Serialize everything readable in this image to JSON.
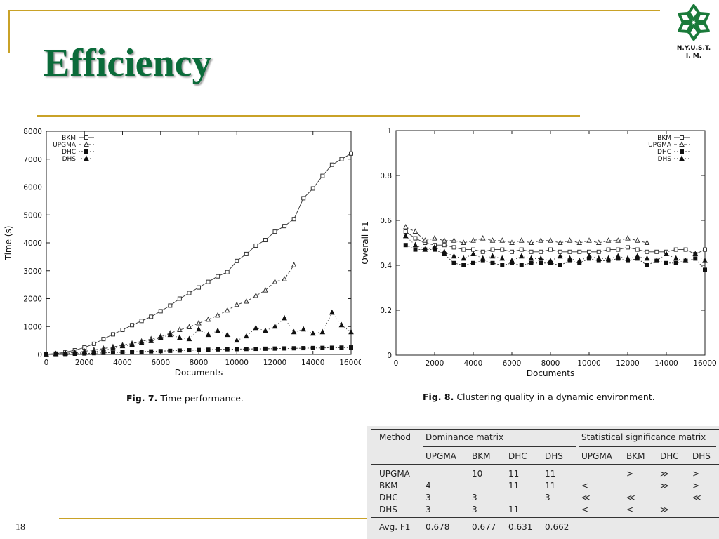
{
  "slide": {
    "title": "Efficiency",
    "page_number": "18"
  },
  "logo": {
    "icon": "snowflake-icon",
    "line1": "N.Y.U.S.T.",
    "line2": "I. M."
  },
  "colors": {
    "accent_gold": "#c9a227",
    "title_green": "#0b6b3a",
    "table_bg": "#e9e9e9"
  },
  "figures": {
    "fig7": {
      "label": "Fig. 7.",
      "caption": "Time performance."
    },
    "fig8": {
      "label": "Fig. 8.",
      "caption": "Clustering quality in a dynamic environment."
    }
  },
  "chart_data": [
    {
      "type": "line",
      "xlabel": "Documents",
      "ylabel": "Time (s)",
      "xlim": [
        0,
        16000
      ],
      "ylim": [
        0,
        8000
      ],
      "xticks": [
        "0",
        "2000",
        "4000",
        "6000",
        "8000",
        "10000",
        "12000",
        "14000",
        "16000"
      ],
      "yticks": [
        "0",
        "1000",
        "2000",
        "3000",
        "4000",
        "5000",
        "6000",
        "7000",
        "8000"
      ],
      "grid": false,
      "legend_position": "top-left",
      "series": [
        {
          "name": "BKM",
          "marker": "square",
          "x": [
            0,
            500,
            1000,
            1500,
            2000,
            2500,
            3000,
            3500,
            4000,
            4500,
            5000,
            5500,
            6000,
            6500,
            7000,
            7500,
            8000,
            8500,
            9000,
            9500,
            10000,
            10500,
            11000,
            11500,
            12000,
            12500,
            13000,
            13500,
            14000,
            14500,
            15000,
            15500,
            16000
          ],
          "y": [
            10,
            30,
            80,
            150,
            250,
            380,
            550,
            720,
            880,
            1050,
            1200,
            1350,
            1550,
            1750,
            2000,
            2200,
            2400,
            2600,
            2800,
            2950,
            3350,
            3600,
            3900,
            4100,
            4400,
            4600,
            4850,
            5600,
            5950,
            6400,
            6800,
            7000,
            7200
          ]
        },
        {
          "name": "UPGMA",
          "marker": "triangle-open",
          "x": [
            0,
            500,
            1000,
            1500,
            2000,
            2500,
            3000,
            3500,
            4000,
            4500,
            5000,
            5500,
            6000,
            6500,
            7000,
            7500,
            8000,
            8500,
            9000,
            9500,
            10000,
            10500,
            11000,
            11500,
            12000,
            12500,
            13000
          ],
          "y": [
            10,
            20,
            40,
            70,
            110,
            160,
            210,
            270,
            330,
            390,
            470,
            550,
            640,
            760,
            880,
            980,
            1120,
            1250,
            1400,
            1580,
            1780,
            1900,
            2100,
            2300,
            2600,
            2700,
            3200
          ]
        },
        {
          "name": "DHC",
          "marker": "square-filled",
          "x": [
            0,
            500,
            1000,
            1500,
            2000,
            2500,
            3000,
            3500,
            4000,
            4500,
            5000,
            5500,
            6000,
            6500,
            7000,
            7500,
            8000,
            8500,
            9000,
            9500,
            10000,
            10500,
            11000,
            11500,
            12000,
            12500,
            13000,
            13500,
            14000,
            14500,
            15000,
            15500,
            16000
          ],
          "y": [
            5,
            10,
            15,
            25,
            35,
            45,
            55,
            65,
            80,
            90,
            100,
            110,
            120,
            130,
            140,
            150,
            160,
            170,
            180,
            185,
            190,
            195,
            200,
            205,
            210,
            215,
            220,
            225,
            230,
            235,
            240,
            245,
            250
          ]
        },
        {
          "name": "DHS",
          "marker": "triangle-filled",
          "x": [
            0,
            500,
            1000,
            1500,
            2000,
            2500,
            3000,
            3500,
            4000,
            4500,
            5000,
            5500,
            6000,
            6500,
            7000,
            7500,
            8000,
            8500,
            9000,
            9500,
            10000,
            10500,
            11000,
            11500,
            12000,
            12500,
            13000,
            13500,
            14000,
            14500,
            15000,
            15500,
            16000
          ],
          "y": [
            5,
            20,
            40,
            60,
            80,
            100,
            150,
            220,
            300,
            350,
            420,
            480,
            600,
            700,
            600,
            550,
            900,
            700,
            850,
            700,
            500,
            650,
            950,
            850,
            1000,
            1300,
            800,
            900,
            750,
            800,
            1500,
            1050,
            800
          ]
        }
      ]
    },
    {
      "type": "line",
      "xlabel": "Documents",
      "ylabel": "Overall F1",
      "xlim": [
        0,
        16000
      ],
      "ylim": [
        0,
        1
      ],
      "xticks": [
        "0",
        "2000",
        "4000",
        "6000",
        "8000",
        "10000",
        "12000",
        "14000",
        "16000"
      ],
      "yticks": [
        "0",
        "0.2",
        "0.4",
        "0.6",
        "0.8",
        "1"
      ],
      "grid": false,
      "legend_position": "top-right",
      "series": [
        {
          "name": "BKM",
          "marker": "square",
          "x": [
            500,
            1000,
            1500,
            2000,
            2500,
            3000,
            3500,
            4000,
            4500,
            5000,
            5500,
            6000,
            6500,
            7000,
            7500,
            8000,
            8500,
            9000,
            9500,
            10000,
            10500,
            11000,
            11500,
            12000,
            12500,
            13000,
            13500,
            14000,
            14500,
            15000,
            15500,
            16000
          ],
          "y": [
            0.55,
            0.52,
            0.5,
            0.49,
            0.49,
            0.48,
            0.47,
            0.47,
            0.46,
            0.47,
            0.47,
            0.46,
            0.47,
            0.46,
            0.46,
            0.47,
            0.46,
            0.46,
            0.46,
            0.46,
            0.46,
            0.47,
            0.47,
            0.48,
            0.47,
            0.46,
            0.46,
            0.46,
            0.47,
            0.47,
            0.45,
            0.47
          ]
        },
        {
          "name": "UPGMA",
          "marker": "triangle-open",
          "x": [
            500,
            1000,
            1500,
            2000,
            2500,
            3000,
            3500,
            4000,
            4500,
            5000,
            5500,
            6000,
            6500,
            7000,
            7500,
            8000,
            8500,
            9000,
            9500,
            10000,
            10500,
            11000,
            11500,
            12000,
            12500,
            13000
          ],
          "y": [
            0.57,
            0.55,
            0.51,
            0.52,
            0.51,
            0.51,
            0.5,
            0.51,
            0.52,
            0.51,
            0.51,
            0.5,
            0.51,
            0.5,
            0.51,
            0.51,
            0.5,
            0.51,
            0.5,
            0.51,
            0.5,
            0.51,
            0.51,
            0.52,
            0.51,
            0.5
          ]
        },
        {
          "name": "DHC",
          "marker": "square-filled",
          "x": [
            500,
            1000,
            1500,
            2000,
            2500,
            3000,
            3500,
            4000,
            4500,
            5000,
            5500,
            6000,
            6500,
            7000,
            7500,
            8000,
            8500,
            9000,
            9500,
            10000,
            10500,
            11000,
            11500,
            12000,
            12500,
            13000,
            13500,
            14000,
            14500,
            15000,
            15500,
            16000
          ],
          "y": [
            0.49,
            0.47,
            0.47,
            0.47,
            0.45,
            0.41,
            0.4,
            0.41,
            0.42,
            0.41,
            0.4,
            0.41,
            0.4,
            0.41,
            0.41,
            0.41,
            0.4,
            0.42,
            0.41,
            0.43,
            0.42,
            0.42,
            0.43,
            0.42,
            0.43,
            0.4,
            0.42,
            0.41,
            0.41,
            0.42,
            0.43,
            0.38
          ]
        },
        {
          "name": "DHS",
          "marker": "triangle-filled",
          "x": [
            500,
            1000,
            1500,
            2000,
            2500,
            3000,
            3500,
            4000,
            4500,
            5000,
            5500,
            6000,
            6500,
            7000,
            7500,
            8000,
            8500,
            9000,
            9500,
            10000,
            10500,
            11000,
            11500,
            12000,
            12500,
            13000,
            13500,
            14000,
            14500,
            15000,
            15500,
            16000
          ],
          "y": [
            0.53,
            0.49,
            0.47,
            0.48,
            0.46,
            0.44,
            0.43,
            0.45,
            0.43,
            0.44,
            0.43,
            0.42,
            0.44,
            0.43,
            0.43,
            0.42,
            0.44,
            0.43,
            0.42,
            0.44,
            0.43,
            0.43,
            0.44,
            0.43,
            0.44,
            0.43,
            0.42,
            0.45,
            0.43,
            0.42,
            0.45,
            0.42
          ]
        }
      ]
    },
    {
      "type": "table",
      "columns": [
        {
          "group": "Method",
          "cols": [
            "Method"
          ]
        },
        {
          "group": "Dominance matrix",
          "cols": [
            "UPGMA",
            "BKM",
            "DHC",
            "DHS"
          ]
        },
        {
          "group": "Statistical significance matrix",
          "cols": [
            "UPGMA",
            "BKM",
            "DHC",
            "DHS"
          ]
        }
      ],
      "rows": [
        [
          "UPGMA",
          "–",
          "10",
          "11",
          "11",
          "–",
          ">",
          "≫",
          ">"
        ],
        [
          "BKM",
          "4",
          "–",
          "11",
          "11",
          "<",
          "–",
          "≫",
          ">"
        ],
        [
          "DHC",
          "3",
          "3",
          "–",
          "3",
          "≪",
          "≪",
          "–",
          "≪"
        ],
        [
          "DHS",
          "3",
          "3",
          "11",
          "–",
          "<",
          "<",
          "≫",
          "–"
        ]
      ],
      "footer": [
        "Avg. F1",
        "0.678",
        "0.677",
        "0.631",
        "0.662"
      ]
    }
  ]
}
